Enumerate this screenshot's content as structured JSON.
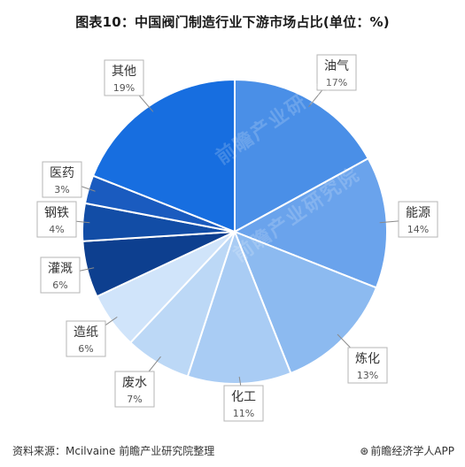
{
  "title": "图表10：中国阀门制造行业下游市场占比(单位：%)",
  "chart_data": {
    "type": "pie",
    "title": "图表10：中国阀门制造行业下游市场占比(单位：%)",
    "slices": [
      {
        "label": "油气",
        "value": 17,
        "value_label": "17%",
        "color": "#4a8fe7"
      },
      {
        "label": "能源",
        "value": 14,
        "value_label": "14%",
        "color": "#6aa3ec"
      },
      {
        "label": "炼化",
        "value": 13,
        "value_label": "13%",
        "color": "#8cbaf0"
      },
      {
        "label": "化工",
        "value": 11,
        "value_label": "11%",
        "color": "#a9ccf4"
      },
      {
        "label": "废水",
        "value": 7,
        "value_label": "7%",
        "color": "#bcd8f6"
      },
      {
        "label": "造纸",
        "value": 6,
        "value_label": "6%",
        "color": "#d0e4fa"
      },
      {
        "label": "灌溉",
        "value": 6,
        "value_label": "6%",
        "color": "#0d3f8f"
      },
      {
        "label": "钢铁",
        "value": 4,
        "value_label": "4%",
        "color": "#124da6"
      },
      {
        "label": "医药",
        "value": 3,
        "value_label": "3%",
        "color": "#1a5bbf"
      },
      {
        "label": "其他",
        "value": 19,
        "value_label": "19%",
        "color": "#176ee0"
      }
    ],
    "start_angle": "12 o'clock",
    "direction": "clockwise",
    "legend": "none",
    "slice_border_color": "#ffffff"
  },
  "footer": {
    "source": "资料来源：Mcilvaine 前瞻产业研究院整理",
    "brand": "前瞻经济学人APP"
  },
  "watermark_text": "前瞻产业研究院"
}
